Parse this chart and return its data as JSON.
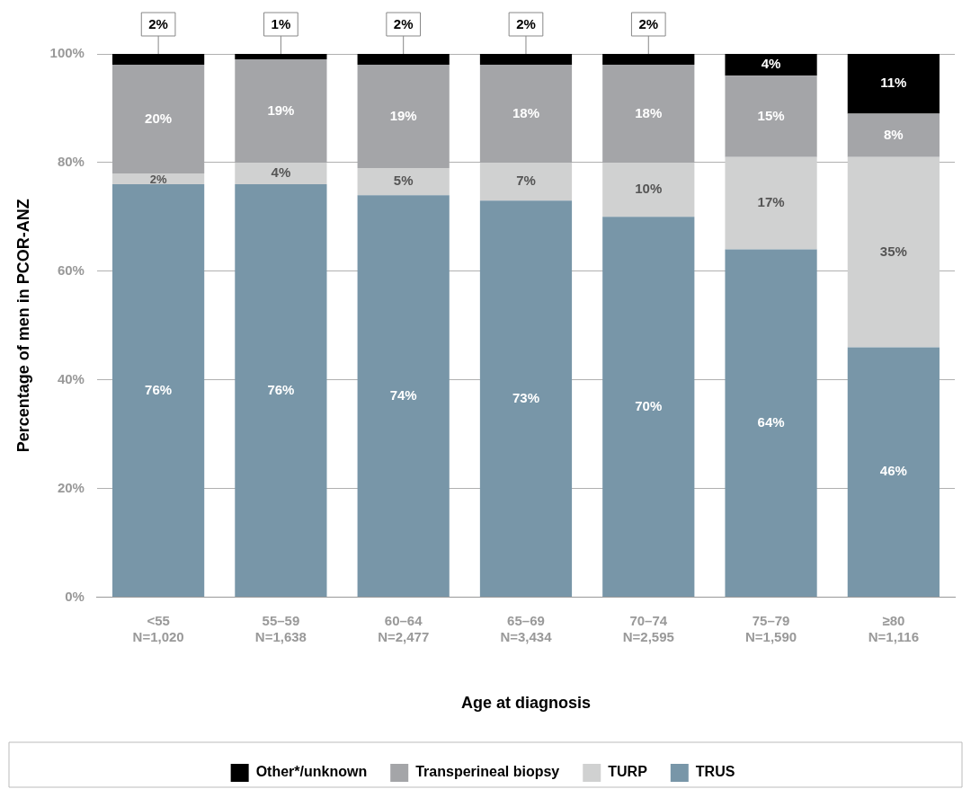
{
  "chart_data": {
    "type": "bar",
    "stacked": true,
    "xlabel": "Age at diagnosis",
    "ylabel": "Percentage of men in PCOR-ANZ",
    "categories": [
      "<55\nN=1,020",
      "55–59\nN=1,638",
      "60–64\nN=2,477",
      "65–69\nN=3,434",
      "70–74\nN=2,595",
      "75–79\nN=1,590",
      "≥80\nN=1,116"
    ],
    "series": [
      {
        "name": "TRUS",
        "color": "#7896a8",
        "values": [
          76,
          76,
          74,
          73,
          70,
          64,
          46
        ],
        "value_labels": [
          "76%",
          "76%",
          "74%",
          "73%",
          "70%",
          "64%",
          "46%"
        ]
      },
      {
        "name": "TURP",
        "color": "#d0d1d1",
        "values": [
          2,
          4,
          5,
          7,
          10,
          17,
          35
        ],
        "value_labels": [
          "2%",
          "4%",
          "5%",
          "7%",
          "10%",
          "17%",
          "35%"
        ]
      },
      {
        "name": "Transperineal biopsy",
        "color": "#a4a5a8",
        "values": [
          20,
          19,
          19,
          18,
          18,
          15,
          8
        ],
        "value_labels": [
          "20%",
          "19%",
          "19%",
          "18%",
          "18%",
          "15%",
          "8%"
        ]
      },
      {
        "name": "Other*/unknown",
        "color": "#000000",
        "values": [
          2,
          1,
          2,
          2,
          2,
          4,
          11
        ],
        "value_labels": [
          "2%",
          "1%",
          "2%",
          "2%",
          "2%",
          "4%",
          "11%"
        ]
      }
    ],
    "ylim": [
      0,
      100
    ],
    "yticks": [
      {
        "value": 0,
        "label": "0%"
      },
      {
        "value": 20,
        "label": "20%"
      },
      {
        "value": 40,
        "label": "40%"
      },
      {
        "value": 60,
        "label": "60%"
      },
      {
        "value": 80,
        "label": "80%"
      },
      {
        "value": 100,
        "label": "100%"
      }
    ],
    "grid": "y",
    "legend": "bottom"
  }
}
